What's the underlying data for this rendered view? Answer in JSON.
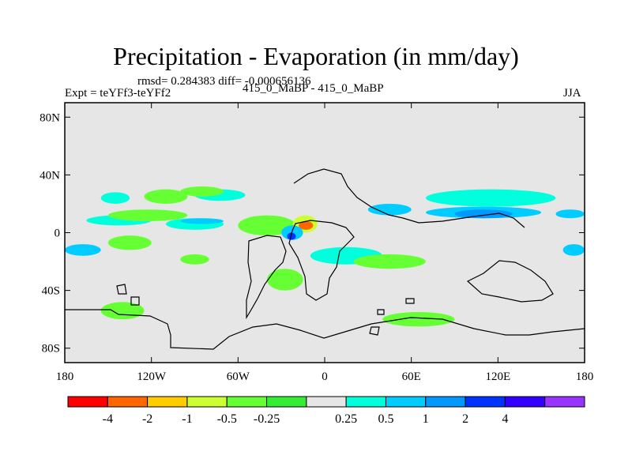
{
  "title": "Precipitation - Evaporation (in mm/day)",
  "stats_line": "rmsd= 0.284383 diff= -0.000656136",
  "experiment_label": "Expt = teYFf3-teYFf2",
  "cases_label": "415_0_MaBP - 415_0_MaBP",
  "season_label": "JJA",
  "map": {
    "projection": "cylindrical equidistant",
    "lon_range": [
      -180,
      180
    ],
    "lat_range": [
      -90,
      90
    ],
    "y_ticks": [
      {
        "lat": 80,
        "label": "80N"
      },
      {
        "lat": 40,
        "label": "40N"
      },
      {
        "lat": 0,
        "label": "0"
      },
      {
        "lat": -40,
        "label": "40S"
      },
      {
        "lat": -80,
        "label": "80S"
      }
    ],
    "x_ticks": [
      {
        "lon": -180,
        "label": "180"
      },
      {
        "lon": -120,
        "label": "120W"
      },
      {
        "lon": -60,
        "label": "60W"
      },
      {
        "lon": 0,
        "label": "0"
      },
      {
        "lon": 60,
        "label": "60E"
      },
      {
        "lon": 120,
        "label": "120E"
      },
      {
        "lon": 180,
        "label": "180"
      }
    ],
    "background_color": "#e6e6e6"
  },
  "colorbar": {
    "colors": [
      "#ff0000",
      "#ff6600",
      "#ffcc00",
      "#ccff33",
      "#66ff33",
      "#33ee33",
      "#e6e6e6",
      "#00ffdd",
      "#00ccff",
      "#0099ff",
      "#0033ff",
      "#3300ff",
      "#9933ff"
    ],
    "labels": [
      "-4",
      "-2",
      "-1",
      "-0.5",
      "-0.25",
      "0.25",
      "0.5",
      "1",
      "2",
      "4"
    ],
    "label_boundaries": [
      1,
      2,
      3,
      4,
      5,
      7,
      8,
      9,
      10,
      11
    ]
  },
  "chart_data": {
    "type": "heatmap",
    "title": "Precipitation - Evaporation (in mm/day)",
    "subtitle": "rmsd= 0.284383 diff= -0.000656136",
    "levels": [
      -4,
      -2,
      -1,
      -0.5,
      -0.25,
      0.25,
      0.5,
      1,
      2,
      4
    ],
    "xlabel": "",
    "ylabel": "",
    "xlim": [
      -180,
      180
    ],
    "ylim": [
      -90,
      90
    ],
    "regions": [
      {
        "lon": [
          -155,
          -135
        ],
        "lat": [
          20,
          28
        ],
        "value": 0.4
      },
      {
        "lon": [
          -125,
          -95
        ],
        "lat": [
          20,
          30
        ],
        "value": -0.35
      },
      {
        "lon": [
          -90,
          -55
        ],
        "lat": [
          22,
          30
        ],
        "value": 0.4
      },
      {
        "lon": [
          -100,
          -70
        ],
        "lat": [
          25,
          32
        ],
        "value": -0.4
      },
      {
        "lon": [
          -165,
          -120
        ],
        "lat": [
          5,
          12
        ],
        "value": 0.4
      },
      {
        "lon": [
          -150,
          -95
        ],
        "lat": [
          8,
          16
        ],
        "value": -0.35
      },
      {
        "lon": [
          -110,
          -70
        ],
        "lat": [
          2,
          10
        ],
        "value": 0.4
      },
      {
        "lon": [
          -100,
          -70
        ],
        "lat": [
          6,
          10
        ],
        "value": 0.7
      },
      {
        "lon": [
          -60,
          -20
        ],
        "lat": [
          -2,
          12
        ],
        "value": -0.35
      },
      {
        "lon": [
          -22,
          -5
        ],
        "lat": [
          0,
          12
        ],
        "value": -0.8
      },
      {
        "lon": [
          -18,
          -8
        ],
        "lat": [
          2,
          8
        ],
        "value": -3.0
      },
      {
        "lon": [
          -30,
          -15
        ],
        "lat": [
          -5,
          5
        ],
        "value": 0.7
      },
      {
        "lon": [
          -26,
          -20
        ],
        "lat": [
          -5,
          0
        ],
        "value": 3.0
      },
      {
        "lon": [
          -180,
          -155
        ],
        "lat": [
          -16,
          -8
        ],
        "value": 0.7
      },
      {
        "lon": [
          -150,
          -120
        ],
        "lat": [
          -12,
          -2
        ],
        "value": -0.35
      },
      {
        "lon": [
          -100,
          -80
        ],
        "lat": [
          -22,
          -15
        ],
        "value": -0.35
      },
      {
        "lon": [
          -40,
          -15
        ],
        "lat": [
          -40,
          -25
        ],
        "value": -0.4
      },
      {
        "lon": [
          -10,
          40
        ],
        "lat": [
          -22,
          -10
        ],
        "value": 0.35
      },
      {
        "lon": [
          20,
          70
        ],
        "lat": [
          -25,
          -15
        ],
        "value": -0.35
      },
      {
        "lon": [
          30,
          60
        ],
        "lat": [
          12,
          20
        ],
        "value": 0.7
      },
      {
        "lon": [
          70,
          160
        ],
        "lat": [
          18,
          30
        ],
        "value": 0.4
      },
      {
        "lon": [
          70,
          150
        ],
        "lat": [
          10,
          18
        ],
        "value": 0.7
      },
      {
        "lon": [
          90,
          130
        ],
        "lat": [
          10,
          16
        ],
        "value": 1.5
      },
      {
        "lon": [
          160,
          180
        ],
        "lat": [
          10,
          16
        ],
        "value": 0.5
      },
      {
        "lon": [
          165,
          180
        ],
        "lat": [
          -16,
          -8
        ],
        "value": 0.5
      },
      {
        "lon": [
          40,
          90
        ],
        "lat": [
          -65,
          -55
        ],
        "value": -0.35
      },
      {
        "lon": [
          -155,
          -125
        ],
        "lat": [
          -60,
          -48
        ],
        "value": -0.4
      }
    ]
  }
}
